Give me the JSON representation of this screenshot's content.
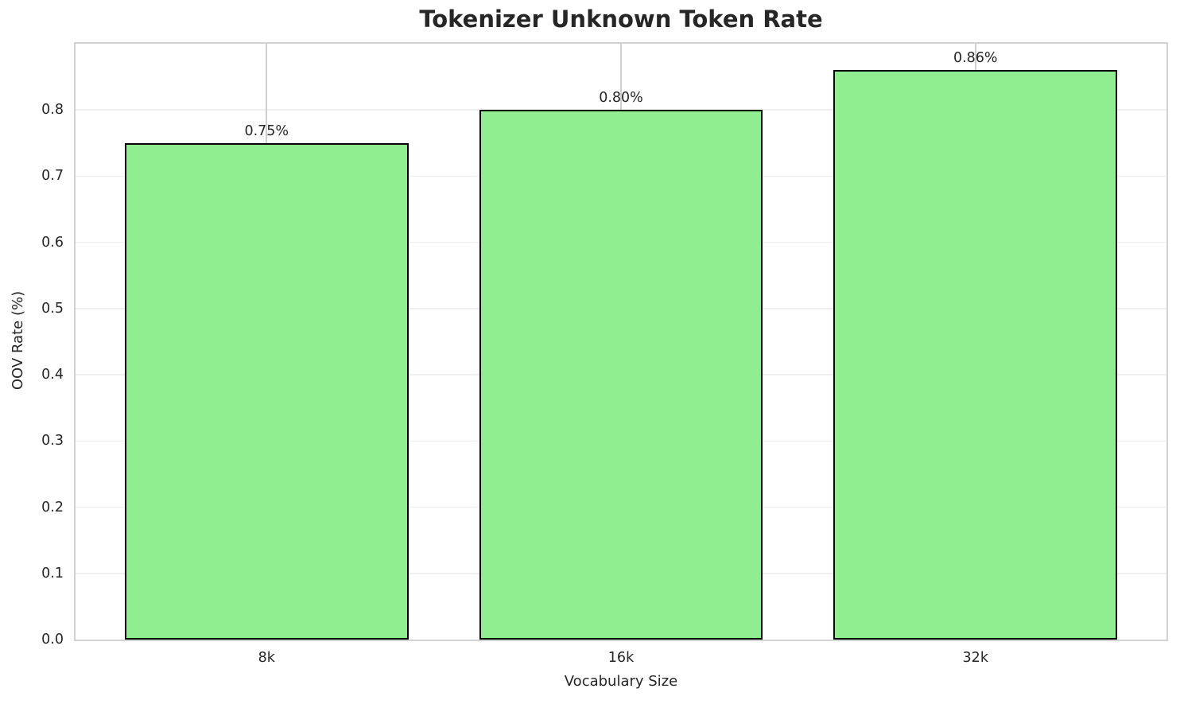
{
  "chart_data": {
    "type": "bar",
    "title": "Tokenizer Unknown Token Rate",
    "xlabel": "Vocabulary Size",
    "ylabel": "OOV Rate (%)",
    "categories": [
      "8k",
      "16k",
      "32k"
    ],
    "values": [
      0.75,
      0.8,
      0.86
    ],
    "bar_labels": [
      "0.75%",
      "0.80%",
      "0.86%"
    ],
    "ylim": [
      0,
      0.9
    ],
    "yticks": [
      0,
      0.1,
      0.2,
      0.3,
      0.4,
      0.5,
      0.6,
      0.7,
      0.8
    ],
    "ytick_labels": [
      "0.0",
      "0.1",
      "0.2",
      "0.3",
      "0.4",
      "0.5",
      "0.6",
      "0.7",
      "0.8"
    ],
    "grid": true,
    "legend_position": "none",
    "colors": {
      "bar_fill": "#90ee90",
      "bar_edge": "#000000",
      "grid_horizontal": "#efefef",
      "grid_vertical": "#cfcfcf",
      "spine": "#d2d2d2",
      "text": "#262626",
      "background": "#ffffff"
    }
  }
}
